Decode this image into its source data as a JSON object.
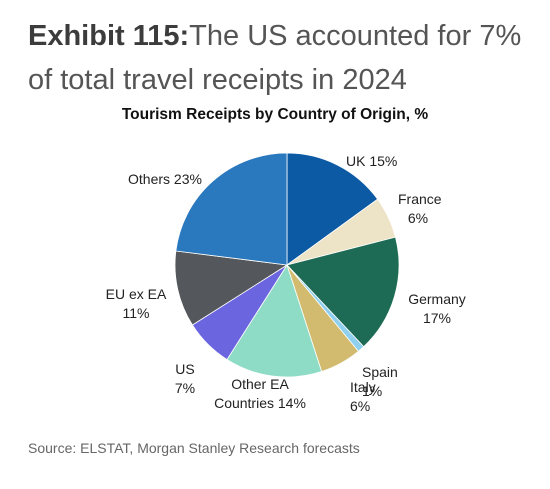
{
  "header": {
    "exhibit_lead": "Exhibit 115:",
    "exhibit_text": "The US accounted for 7% of total travel receipts in 2024"
  },
  "chart_data": {
    "type": "pie",
    "title": "Tourism Receipts by Country of Origin, %",
    "unit": "%",
    "slices": [
      {
        "name": "UK",
        "value": 15,
        "label_lines": [
          "UK 15%"
        ],
        "color": "#0b5aa3"
      },
      {
        "name": "France",
        "value": 6,
        "label_lines": [
          "France",
          "6%"
        ],
        "color": "#ede3c6"
      },
      {
        "name": "Germany",
        "value": 17,
        "label_lines": [
          "Germany",
          "17%"
        ],
        "color": "#1d6b55"
      },
      {
        "name": "Spain",
        "value": 1,
        "label_lines": [
          "Spain",
          "1%"
        ],
        "color": "#8fd0ee"
      },
      {
        "name": "Italy",
        "value": 6,
        "label_lines": [
          "Italy",
          "6%"
        ],
        "color": "#d2bb6e"
      },
      {
        "name": "Other EA Countries",
        "value": 14,
        "label_lines": [
          "Other EA",
          "Countries 14%"
        ],
        "color": "#8fdcc6"
      },
      {
        "name": "US",
        "value": 7,
        "label_lines": [
          "US",
          "7%"
        ],
        "color": "#6b66e0"
      },
      {
        "name": "EU ex EA",
        "value": 11,
        "label_lines": [
          "EU ex EA",
          "11%"
        ],
        "color": "#54575b"
      },
      {
        "name": "Others",
        "value": 23,
        "label_lines": [
          "Others 23%"
        ],
        "color": "#2a78bd"
      }
    ]
  },
  "footer": {
    "source": "Source: ELSTAT, Morgan Stanley Research forecasts"
  }
}
